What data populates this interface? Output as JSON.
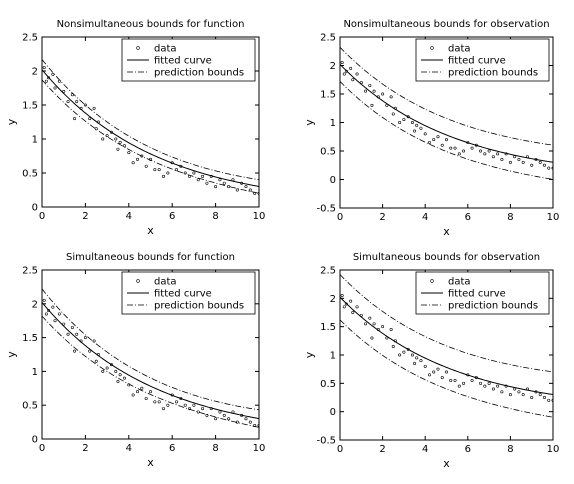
{
  "chart_data": [
    {
      "type": "scatter",
      "title": "Nonsimultaneous bounds for function",
      "xlabel": "x",
      "ylabel": "y",
      "xlim": [
        0,
        10
      ],
      "ylim": [
        0,
        2.5
      ],
      "xticks": [
        "0",
        "2",
        "4",
        "6",
        "8",
        "10"
      ],
      "yticks": [
        "0",
        "0.5",
        "1",
        "1.5",
        "2",
        "2.5"
      ],
      "grid": false,
      "legend": {
        "placement": "top-right",
        "entries": [
          "data",
          "fitted curve",
          "prediction bounds"
        ]
      },
      "points": [
        [
          0.1,
          2.05
        ],
        [
          0.2,
          1.85
        ],
        [
          0.3,
          1.9
        ],
        [
          0.5,
          1.95
        ],
        [
          0.6,
          1.75
        ],
        [
          0.8,
          1.85
        ],
        [
          1.0,
          1.7
        ],
        [
          1.2,
          1.55
        ],
        [
          1.4,
          1.65
        ],
        [
          1.5,
          1.3
        ],
        [
          1.6,
          1.55
        ],
        [
          1.8,
          1.45
        ],
        [
          2.0,
          1.5
        ],
        [
          2.2,
          1.3
        ],
        [
          2.4,
          1.45
        ],
        [
          2.5,
          1.15
        ],
        [
          2.6,
          1.25
        ],
        [
          2.8,
          1.0
        ],
        [
          3.0,
          1.05
        ],
        [
          3.2,
          1.1
        ],
        [
          3.4,
          1.0
        ],
        [
          3.5,
          0.85
        ],
        [
          3.6,
          0.95
        ],
        [
          3.8,
          0.9
        ],
        [
          4.0,
          0.8
        ],
        [
          4.2,
          0.65
        ],
        [
          4.4,
          0.7
        ],
        [
          4.6,
          0.75
        ],
        [
          4.8,
          0.6
        ],
        [
          5.0,
          0.7
        ],
        [
          5.2,
          0.55
        ],
        [
          5.4,
          0.55
        ],
        [
          5.6,
          0.45
        ],
        [
          5.8,
          0.5
        ],
        [
          6.0,
          0.65
        ],
        [
          6.2,
          0.55
        ],
        [
          6.4,
          0.6
        ],
        [
          6.6,
          0.5
        ],
        [
          6.8,
          0.45
        ],
        [
          7.0,
          0.5
        ],
        [
          7.2,
          0.4
        ],
        [
          7.4,
          0.45
        ],
        [
          7.6,
          0.35
        ],
        [
          7.8,
          0.45
        ],
        [
          8.0,
          0.3
        ],
        [
          8.2,
          0.4
        ],
        [
          8.4,
          0.35
        ],
        [
          8.6,
          0.3
        ],
        [
          8.8,
          0.4
        ],
        [
          9.0,
          0.25
        ],
        [
          9.2,
          0.35
        ],
        [
          9.4,
          0.3
        ],
        [
          9.6,
          0.25
        ],
        [
          9.8,
          0.2
        ],
        [
          10.0,
          0.2
        ]
      ],
      "fitted_curve": {
        "model": "a*exp(-b*x)",
        "a": 2.02,
        "b": 0.19
      },
      "bounds_halfwidth": [
        0.15,
        0.06,
        0.1
      ]
    },
    {
      "type": "scatter",
      "title": "Nonsimultaneous bounds for observation",
      "xlabel": "x",
      "ylabel": "y",
      "xlim": [
        0,
        10
      ],
      "ylim": [
        -0.5,
        2.5
      ],
      "xticks": [
        "0",
        "2",
        "4",
        "6",
        "8",
        "10"
      ],
      "yticks": [
        "-0.5",
        "0",
        "0.5",
        "1",
        "1.5",
        "2",
        "2.5"
      ],
      "grid": false,
      "legend": {
        "placement": "top-right",
        "entries": [
          "data",
          "fitted curve",
          "prediction bounds"
        ]
      },
      "points": [
        [
          0.1,
          2.05
        ],
        [
          0.2,
          1.85
        ],
        [
          0.3,
          1.9
        ],
        [
          0.5,
          1.95
        ],
        [
          0.6,
          1.75
        ],
        [
          0.8,
          1.85
        ],
        [
          1.0,
          1.7
        ],
        [
          1.2,
          1.55
        ],
        [
          1.4,
          1.65
        ],
        [
          1.5,
          1.3
        ],
        [
          1.6,
          1.55
        ],
        [
          1.8,
          1.45
        ],
        [
          2.0,
          1.5
        ],
        [
          2.2,
          1.3
        ],
        [
          2.4,
          1.45
        ],
        [
          2.5,
          1.15
        ],
        [
          2.6,
          1.25
        ],
        [
          2.8,
          1.0
        ],
        [
          3.0,
          1.05
        ],
        [
          3.2,
          1.1
        ],
        [
          3.4,
          1.0
        ],
        [
          3.5,
          0.85
        ],
        [
          3.6,
          0.95
        ],
        [
          3.8,
          0.9
        ],
        [
          4.0,
          0.8
        ],
        [
          4.2,
          0.65
        ],
        [
          4.4,
          0.7
        ],
        [
          4.6,
          0.75
        ],
        [
          4.8,
          0.6
        ],
        [
          5.0,
          0.7
        ],
        [
          5.2,
          0.55
        ],
        [
          5.4,
          0.55
        ],
        [
          5.6,
          0.45
        ],
        [
          5.8,
          0.5
        ],
        [
          6.0,
          0.65
        ],
        [
          6.2,
          0.55
        ],
        [
          6.4,
          0.6
        ],
        [
          6.6,
          0.5
        ],
        [
          6.8,
          0.45
        ],
        [
          7.0,
          0.5
        ],
        [
          7.2,
          0.4
        ],
        [
          7.4,
          0.45
        ],
        [
          7.6,
          0.35
        ],
        [
          7.8,
          0.45
        ],
        [
          8.0,
          0.3
        ],
        [
          8.2,
          0.4
        ],
        [
          8.4,
          0.35
        ],
        [
          8.6,
          0.3
        ],
        [
          8.8,
          0.4
        ],
        [
          9.0,
          0.25
        ],
        [
          9.2,
          0.35
        ],
        [
          9.4,
          0.3
        ],
        [
          9.6,
          0.25
        ],
        [
          9.8,
          0.2
        ],
        [
          10.0,
          0.2
        ]
      ],
      "fitted_curve": {
        "model": "a*exp(-b*x)",
        "a": 2.02,
        "b": 0.19
      },
      "bounds_halfwidth": [
        0.3,
        0.28,
        0.3
      ]
    },
    {
      "type": "scatter",
      "title": "Simultaneous bounds for function",
      "xlabel": "x",
      "ylabel": "y",
      "xlim": [
        0,
        10
      ],
      "ylim": [
        0,
        2.5
      ],
      "xticks": [
        "0",
        "2",
        "4",
        "6",
        "8",
        "10"
      ],
      "yticks": [
        "0",
        "0.5",
        "1",
        "1.5",
        "2",
        "2.5"
      ],
      "grid": false,
      "legend": {
        "placement": "top-right",
        "entries": [
          "data",
          "fitted curve",
          "prediction bounds"
        ]
      },
      "points": [
        [
          0.1,
          2.05
        ],
        [
          0.2,
          1.85
        ],
        [
          0.3,
          1.9
        ],
        [
          0.5,
          1.95
        ],
        [
          0.6,
          1.75
        ],
        [
          0.8,
          1.85
        ],
        [
          1.0,
          1.7
        ],
        [
          1.2,
          1.55
        ],
        [
          1.4,
          1.65
        ],
        [
          1.5,
          1.3
        ],
        [
          1.6,
          1.55
        ],
        [
          1.8,
          1.45
        ],
        [
          2.0,
          1.5
        ],
        [
          2.2,
          1.3
        ],
        [
          2.4,
          1.45
        ],
        [
          2.5,
          1.15
        ],
        [
          2.6,
          1.25
        ],
        [
          2.8,
          1.0
        ],
        [
          3.0,
          1.05
        ],
        [
          3.2,
          1.1
        ],
        [
          3.4,
          1.0
        ],
        [
          3.5,
          0.85
        ],
        [
          3.6,
          0.95
        ],
        [
          3.8,
          0.9
        ],
        [
          4.0,
          0.8
        ],
        [
          4.2,
          0.65
        ],
        [
          4.4,
          0.7
        ],
        [
          4.6,
          0.75
        ],
        [
          4.8,
          0.6
        ],
        [
          5.0,
          0.7
        ],
        [
          5.2,
          0.55
        ],
        [
          5.4,
          0.55
        ],
        [
          5.6,
          0.45
        ],
        [
          5.8,
          0.5
        ],
        [
          6.0,
          0.65
        ],
        [
          6.2,
          0.55
        ],
        [
          6.4,
          0.6
        ],
        [
          6.6,
          0.5
        ],
        [
          6.8,
          0.45
        ],
        [
          7.0,
          0.5
        ],
        [
          7.2,
          0.4
        ],
        [
          7.4,
          0.45
        ],
        [
          7.6,
          0.35
        ],
        [
          7.8,
          0.45
        ],
        [
          8.0,
          0.3
        ],
        [
          8.2,
          0.4
        ],
        [
          8.4,
          0.35
        ],
        [
          8.6,
          0.3
        ],
        [
          8.8,
          0.4
        ],
        [
          9.0,
          0.25
        ],
        [
          9.2,
          0.35
        ],
        [
          9.4,
          0.3
        ],
        [
          9.6,
          0.25
        ],
        [
          9.8,
          0.2
        ],
        [
          10.0,
          0.2
        ]
      ],
      "fitted_curve": {
        "model": "a*exp(-b*x)",
        "a": 2.02,
        "b": 0.19
      },
      "bounds_halfwidth": [
        0.2,
        0.08,
        0.13
      ]
    },
    {
      "type": "scatter",
      "title": "Simultaneous bounds for observation",
      "xlabel": "x",
      "ylabel": "y",
      "xlim": [
        0,
        10
      ],
      "ylim": [
        -0.5,
        2.5
      ],
      "xticks": [
        "0",
        "2",
        "4",
        "6",
        "8",
        "10"
      ],
      "yticks": [
        "-0.5",
        "0",
        "0.5",
        "1",
        "1.5",
        "2",
        "2.5"
      ],
      "grid": false,
      "legend": {
        "placement": "top-right",
        "entries": [
          "data",
          "fitted curve",
          "prediction bounds"
        ]
      },
      "points": [
        [
          0.1,
          2.05
        ],
        [
          0.2,
          1.85
        ],
        [
          0.3,
          1.9
        ],
        [
          0.5,
          1.95
        ],
        [
          0.6,
          1.75
        ],
        [
          0.8,
          1.85
        ],
        [
          1.0,
          1.7
        ],
        [
          1.2,
          1.55
        ],
        [
          1.4,
          1.65
        ],
        [
          1.5,
          1.3
        ],
        [
          1.6,
          1.55
        ],
        [
          1.8,
          1.45
        ],
        [
          2.0,
          1.5
        ],
        [
          2.2,
          1.3
        ],
        [
          2.4,
          1.45
        ],
        [
          2.5,
          1.15
        ],
        [
          2.6,
          1.25
        ],
        [
          2.8,
          1.0
        ],
        [
          3.0,
          1.05
        ],
        [
          3.2,
          1.1
        ],
        [
          3.4,
          1.0
        ],
        [
          3.5,
          0.85
        ],
        [
          3.6,
          0.95
        ],
        [
          3.8,
          0.9
        ],
        [
          4.0,
          0.8
        ],
        [
          4.2,
          0.65
        ],
        [
          4.4,
          0.7
        ],
        [
          4.6,
          0.75
        ],
        [
          4.8,
          0.6
        ],
        [
          5.0,
          0.7
        ],
        [
          5.2,
          0.55
        ],
        [
          5.4,
          0.55
        ],
        [
          5.6,
          0.45
        ],
        [
          5.8,
          0.5
        ],
        [
          6.0,
          0.65
        ],
        [
          6.2,
          0.55
        ],
        [
          6.4,
          0.6
        ],
        [
          6.6,
          0.5
        ],
        [
          6.8,
          0.45
        ],
        [
          7.0,
          0.5
        ],
        [
          7.2,
          0.4
        ],
        [
          7.4,
          0.45
        ],
        [
          7.6,
          0.35
        ],
        [
          7.8,
          0.45
        ],
        [
          8.0,
          0.3
        ],
        [
          8.2,
          0.4
        ],
        [
          8.4,
          0.35
        ],
        [
          8.6,
          0.3
        ],
        [
          8.8,
          0.4
        ],
        [
          9.0,
          0.25
        ],
        [
          9.2,
          0.35
        ],
        [
          9.4,
          0.3
        ],
        [
          9.6,
          0.25
        ],
        [
          9.8,
          0.2
        ],
        [
          10.0,
          0.2
        ]
      ],
      "fitted_curve": {
        "model": "a*exp(-b*x)",
        "a": 2.02,
        "b": 0.19
      },
      "bounds_halfwidth": [
        0.4,
        0.36,
        0.4
      ]
    }
  ]
}
